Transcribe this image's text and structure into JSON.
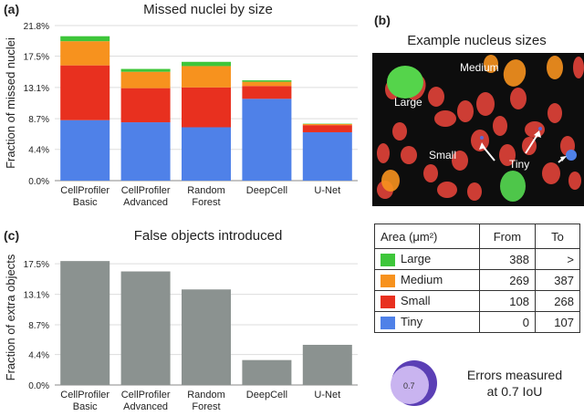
{
  "panels": {
    "a": {
      "letter": "(a)",
      "title": "Missed nuclei by size"
    },
    "b": {
      "letter": "(b)",
      "title": "Example nucleus sizes",
      "image_labels": {
        "large": "Large",
        "medium": "Medium",
        "small": "Small",
        "tiny": "Tiny"
      }
    },
    "c": {
      "letter": "(c)",
      "title": "False objects introduced"
    }
  },
  "chart_data": [
    {
      "type": "bar",
      "stacked": true,
      "title": "Missed nuclei by size",
      "ylabel": "Fraction of missed nuclei",
      "ylim": [
        0,
        21.8
      ],
      "yticks": [
        "0.0%",
        "4.4%",
        "8.7%",
        "13.1%",
        "17.5%",
        "21.8%"
      ],
      "ytick_values": [
        0,
        4.4,
        8.7,
        13.1,
        17.5,
        21.8
      ],
      "categories": [
        [
          "CellProfiler",
          "Basic"
        ],
        [
          "CellProfiler",
          "Advanced"
        ],
        [
          "Random",
          "Forest"
        ],
        [
          "DeepCell"
        ],
        [
          "U-Net"
        ]
      ],
      "series": [
        {
          "name": "Tiny",
          "color": "#4f81e8",
          "values": [
            8.5,
            8.2,
            7.5,
            11.5,
            6.8
          ]
        },
        {
          "name": "Small",
          "color": "#e8301f",
          "values": [
            7.7,
            4.8,
            5.6,
            1.8,
            1.0
          ]
        },
        {
          "name": "Medium",
          "color": "#f7921e",
          "values": [
            3.4,
            2.3,
            3.0,
            0.6,
            0.15
          ]
        },
        {
          "name": "Large",
          "color": "#3ec63a",
          "values": [
            0.7,
            0.4,
            0.6,
            0.2,
            0.05
          ]
        }
      ],
      "grid": "horizontal"
    },
    {
      "type": "bar",
      "title": "False objects introduced",
      "ylabel": "Fraction of extra objects",
      "ylim": [
        0,
        19.5
      ],
      "yticks": [
        "0.0%",
        "4.4%",
        "8.7%",
        "13.1%",
        "17.5%"
      ],
      "ytick_values": [
        0,
        4.4,
        8.7,
        13.1,
        17.5
      ],
      "categories": [
        [
          "CellProfiler",
          "Basic"
        ],
        [
          "CellProfiler",
          "Advanced"
        ],
        [
          "Random",
          "Forest"
        ],
        [
          "DeepCell"
        ],
        [
          "U-Net"
        ]
      ],
      "color": "#8b9290",
      "values": [
        17.9,
        16.4,
        13.8,
        3.6,
        5.8
      ],
      "grid": "horizontal"
    }
  ],
  "legend_table": {
    "headers": [
      "Area (μm²)",
      "From",
      "To"
    ],
    "rows": [
      {
        "label": "Large",
        "color": "#3ec63a",
        "from": "388",
        "to": ">"
      },
      {
        "label": "Medium",
        "color": "#f7921e",
        "from": "269",
        "to": "387"
      },
      {
        "label": "Small",
        "color": "#e8301f",
        "from": "108",
        "to": "268"
      },
      {
        "label": "Tiny",
        "color": "#4f81e8",
        "from": "0",
        "to": "107"
      }
    ]
  },
  "iou": {
    "value_label": "0.7",
    "caption_line1": "Errors measured",
    "caption_line2": "at 0.7 IoU"
  }
}
